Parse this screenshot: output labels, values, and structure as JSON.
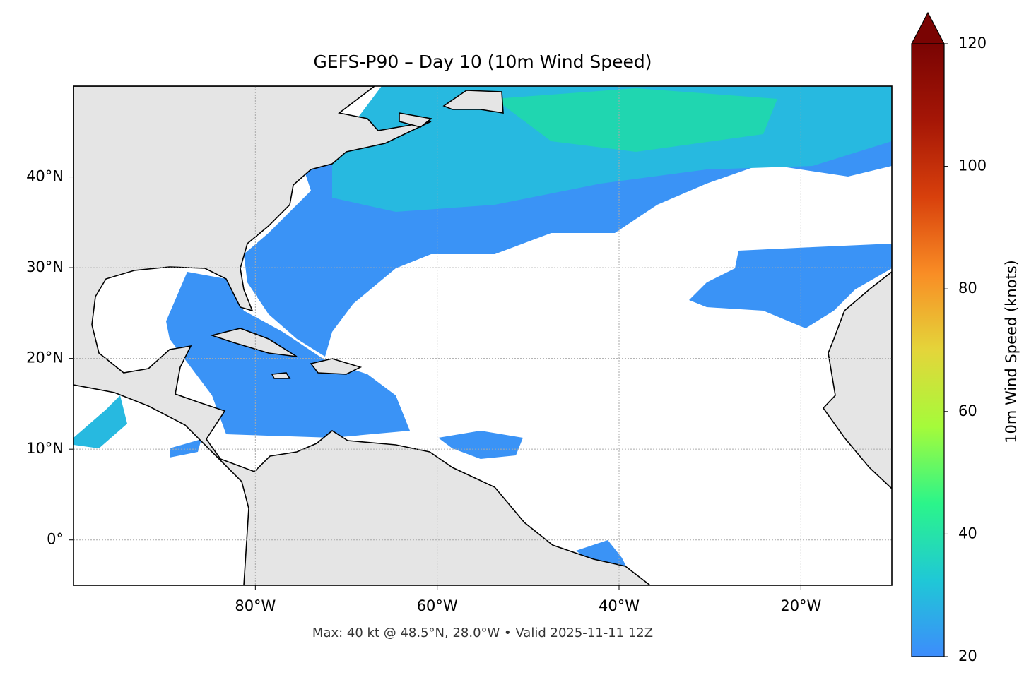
{
  "chart_data": {
    "type": "map",
    "title": "GEFS-P90 – Day 10 (10m Wind Speed)",
    "footnote": "Max: 40 kt @ 48.5°N, 28.0°W • Valid 2025-11-11 12Z",
    "xlim": [
      -100,
      -10
    ],
    "ylim": [
      -5,
      50
    ],
    "xticks": [
      {
        "value": -80,
        "label": "80°W"
      },
      {
        "value": -60,
        "label": "60°W"
      },
      {
        "value": -40,
        "label": "40°W"
      },
      {
        "value": -20,
        "label": "20°W"
      }
    ],
    "yticks": [
      {
        "value": 0,
        "label": "0°"
      },
      {
        "value": 10,
        "label": "10°N"
      },
      {
        "value": 20,
        "label": "20°N"
      },
      {
        "value": 30,
        "label": "30°N"
      },
      {
        "value": 40,
        "label": "40°N"
      }
    ],
    "grid": true,
    "colorbar": {
      "label": "10m Wind Speed (knots)",
      "lim": [
        20,
        120
      ],
      "ticks": [
        20,
        40,
        60,
        80,
        100,
        120
      ],
      "extend": "max",
      "colors": [
        "#3d8cfc",
        "#1fc8d6",
        "#2bf58a",
        "#a5fb3a",
        "#e4d53a",
        "#f98d25",
        "#d8400c",
        "#a51606",
        "#7a0403"
      ]
    }
  }
}
